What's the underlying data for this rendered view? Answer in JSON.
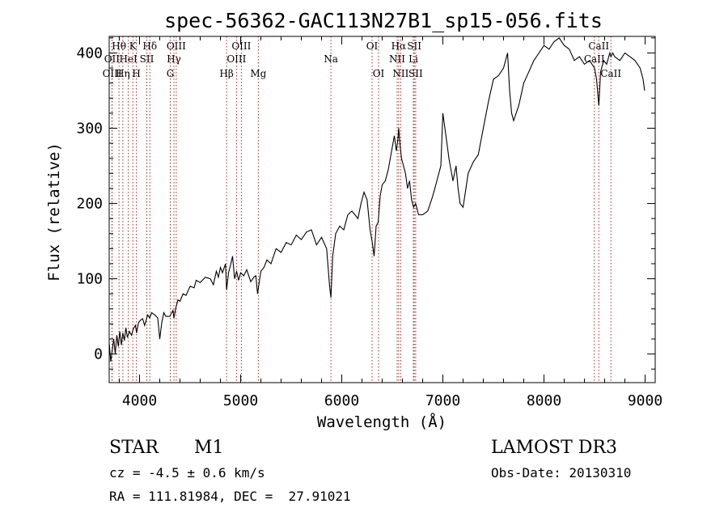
{
  "chart_data": {
    "type": "line",
    "title": "spec-56362-GAC113N27B1_sp15-056.fits",
    "xlabel": "Wavelength (Å)",
    "ylabel": "Flux (relative)",
    "xlim": [
      3700,
      9100
    ],
    "ylim": [
      -38,
      422
    ],
    "xticks": [
      4000,
      5000,
      6000,
      7000,
      8000,
      9000
    ],
    "yticks": [
      0,
      100,
      200,
      300,
      400
    ],
    "x_minor_step": 200,
    "y_minor_step": 20,
    "series": [
      {
        "name": "spectrum",
        "x": [
          3700,
          3715,
          3730,
          3745,
          3760,
          3775,
          3790,
          3805,
          3820,
          3835,
          3850,
          3865,
          3880,
          3900,
          3920,
          3940,
          3960,
          3970,
          3990,
          4010,
          4030,
          4050,
          4080,
          4101,
          4120,
          4150,
          4180,
          4200,
          4220,
          4240,
          4260,
          4300,
          4330,
          4340,
          4360,
          4380,
          4400,
          4430,
          4460,
          4500,
          4540,
          4560,
          4600,
          4650,
          4700,
          4730,
          4760,
          4780,
          4800,
          4820,
          4850,
          4861,
          4880,
          4900,
          4920,
          4940,
          4960,
          4980,
          5000,
          5030,
          5060,
          5100,
          5130,
          5150,
          5167,
          5183,
          5200,
          5230,
          5260,
          5300,
          5350,
          5400,
          5450,
          5500,
          5550,
          5600,
          5650,
          5700,
          5750,
          5800,
          5850,
          5880,
          5893,
          5910,
          5940,
          5980,
          6020,
          6060,
          6100,
          6130,
          6160,
          6190,
          6220,
          6250,
          6280,
          6300,
          6320,
          6340,
          6360,
          6380,
          6400,
          6430,
          6460,
          6480,
          6500,
          6520,
          6540,
          6555,
          6563,
          6575,
          6590,
          6610,
          6630,
          6650,
          6670,
          6690,
          6710,
          6730,
          6760,
          6800,
          6850,
          6900,
          6950,
          6980,
          7000,
          7030,
          7060,
          7100,
          7130,
          7150,
          7170,
          7200,
          7250,
          7300,
          7350,
          7400,
          7450,
          7500,
          7550,
          7600,
          7640,
          7660,
          7680,
          7700,
          7750,
          7800,
          7850,
          7900,
          7950,
          8000,
          8050,
          8100,
          8150,
          8200,
          8250,
          8300,
          8350,
          8400,
          8450,
          8500,
          8520,
          8542,
          8560,
          8590,
          8620,
          8650,
          8662,
          8680,
          8700,
          8750,
          8800,
          8850,
          8900,
          8950,
          8980,
          8995
        ],
        "y": [
          15,
          -10,
          5,
          20,
          0,
          25,
          10,
          30,
          12,
          28,
          18,
          35,
          22,
          30,
          25,
          34,
          38,
          28,
          42,
          45,
          47,
          38,
          52,
          48,
          55,
          52,
          48,
          20,
          42,
          55,
          50,
          50,
          58,
          48,
          62,
          72,
          70,
          80,
          78,
          90,
          88,
          98,
          95,
          102,
          100,
          92,
          110,
          102,
          115,
          108,
          120,
          85,
          108,
          118,
          130,
          100,
          110,
          98,
          108,
          104,
          112,
          96,
          102,
          104,
          80,
          95,
          110,
          115,
          125,
          120,
          140,
          135,
          148,
          145,
          158,
          152,
          162,
          165,
          145,
          155,
          140,
          90,
          75,
          130,
          160,
          170,
          165,
          185,
          190,
          185,
          180,
          200,
          215,
          205,
          165,
          150,
          130,
          170,
          175,
          210,
          225,
          230,
          245,
          260,
          275,
          290,
          270,
          285,
          300,
          280,
          260,
          250,
          240,
          220,
          230,
          205,
          195,
          200,
          185,
          185,
          190,
          210,
          235,
          250,
          320,
          290,
          260,
          230,
          250,
          220,
          200,
          195,
          240,
          255,
          265,
          300,
          335,
          365,
          370,
          380,
          400,
          350,
          320,
          310,
          330,
          360,
          375,
          390,
          400,
          410,
          405,
          415,
          420,
          410,
          405,
          390,
          395,
          385,
          390,
          380,
          365,
          330,
          375,
          390,
          385,
          400,
          395,
          400,
          395,
          390,
          400,
          395,
          390,
          380,
          365,
          350
        ]
      }
    ],
    "lines": [
      {
        "label": "Hθ",
        "x": 3797,
        "row": 1
      },
      {
        "label": "OII",
        "x": 3727,
        "row": 2
      },
      {
        "label": "OIII",
        "x": 3729,
        "row": 3
      },
      {
        "label": "K",
        "x": 3934,
        "row": 1
      },
      {
        "label": "HeI",
        "x": 3889,
        "row": 2
      },
      {
        "label": "Hη",
        "x": 3835,
        "row": 3
      },
      {
        "label": "H",
        "x": 3969,
        "row": 3
      },
      {
        "label": "SII",
        "x": 4072,
        "row": 2
      },
      {
        "label": "Hδ",
        "x": 4102,
        "row": 1
      },
      {
        "label": "OIII",
        "x": 4363,
        "row": 1
      },
      {
        "label": "Hγ",
        "x": 4340,
        "row": 2
      },
      {
        "label": "G",
        "x": 4304,
        "row": 3
      },
      {
        "label": "Hβ",
        "x": 4861,
        "row": 3
      },
      {
        "label": "OIII",
        "x": 5007,
        "row": 1
      },
      {
        "label": "OIII",
        "x": 4959,
        "row": 2
      },
      {
        "label": "Mg",
        "x": 5175,
        "row": 3
      },
      {
        "label": "Na",
        "x": 5893,
        "row": 2
      },
      {
        "label": "OI",
        "x": 6300,
        "row": 1
      },
      {
        "label": "OI",
        "x": 6364,
        "row": 3
      },
      {
        "label": "Hα",
        "x": 6563,
        "row": 1
      },
      {
        "label": "NII",
        "x": 6548,
        "row": 2
      },
      {
        "label": "NII",
        "x": 6583,
        "row": 3
      },
      {
        "label": "SII",
        "x": 6717,
        "row": 1
      },
      {
        "label": "Li",
        "x": 6708,
        "row": 2
      },
      {
        "label": "SII",
        "x": 6731,
        "row": 3
      },
      {
        "label": "CaII",
        "x": 8542,
        "row": 1
      },
      {
        "label": "CaII",
        "x": 8498,
        "row": 2
      },
      {
        "label": "CaII",
        "x": 8662,
        "row": 3
      }
    ]
  },
  "info": {
    "class": "STAR",
    "subclass": "M1",
    "survey": "LAMOST DR3",
    "cz": "cz = -4.5 ± 0.6 km/s",
    "obs_date": "Obs-Date: 20130310",
    "coords": "RA = 111.81984, DEC =  27.91021"
  },
  "colors": {
    "spectrum": "#000000",
    "marker_lines": "#b22222",
    "axes": "#000000"
  }
}
